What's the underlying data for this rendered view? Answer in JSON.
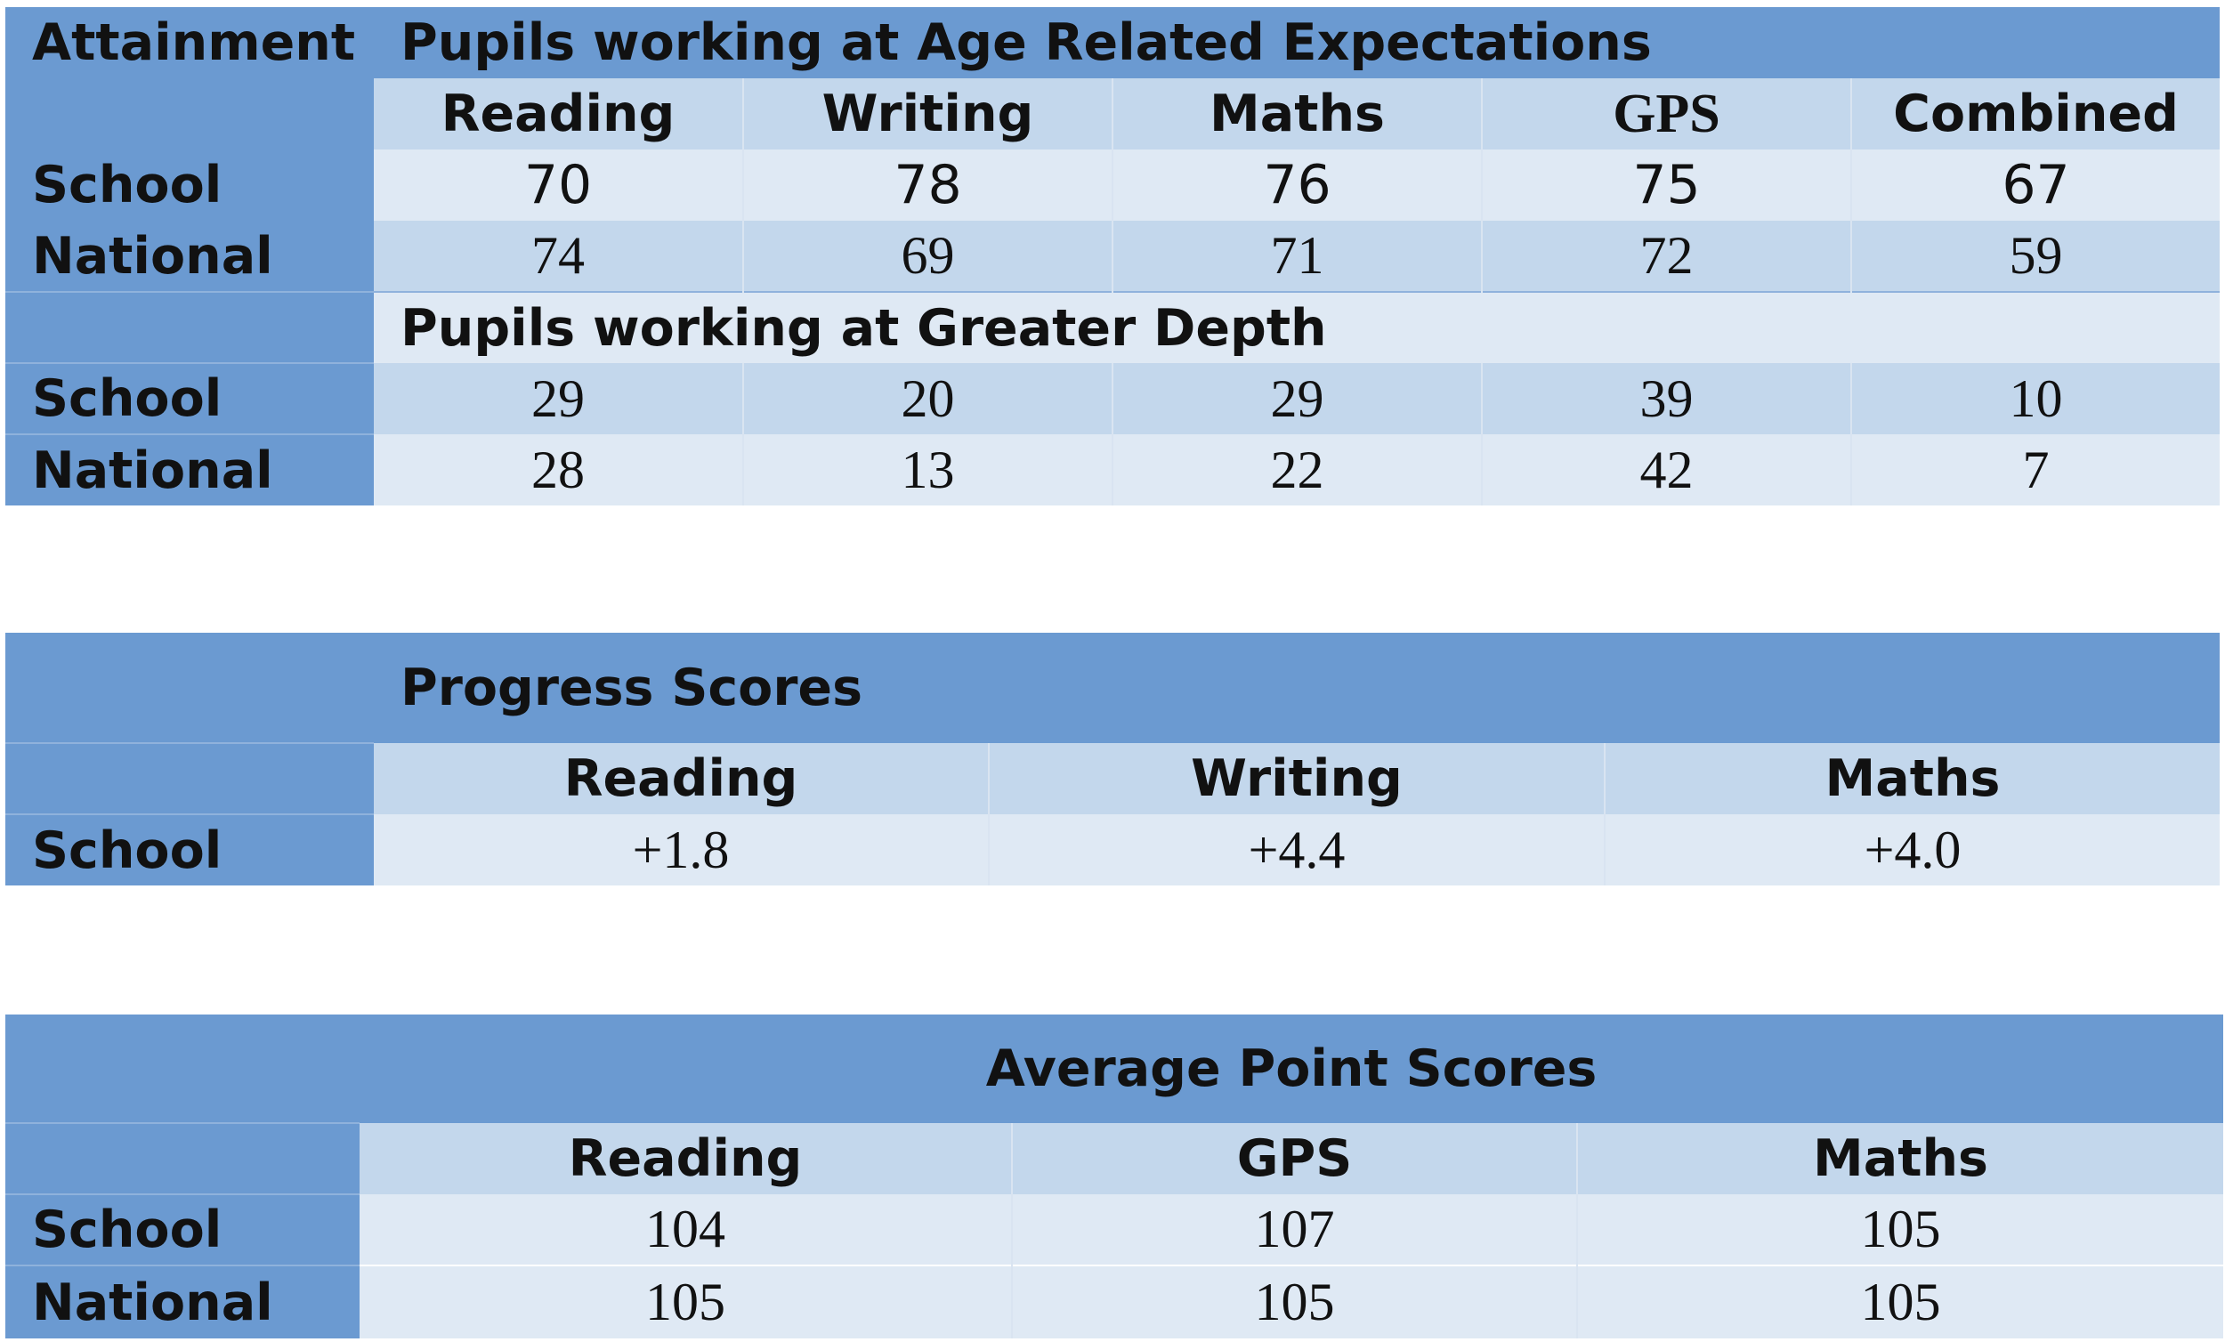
{
  "attainment": {
    "corner_label": "Attainment",
    "section_are_title": "Pupils working at Age Related Expectations",
    "columns": [
      "Reading",
      "Writing",
      "Maths",
      "GPS",
      "Combined"
    ],
    "are_rows": [
      {
        "label": "School",
        "values": [
          "70",
          "78",
          "76",
          "75",
          "67"
        ]
      },
      {
        "label": "National",
        "values": [
          "74",
          "69",
          "71",
          "72",
          "59"
        ]
      }
    ],
    "section_gd_title": "Pupils working at Greater Depth",
    "gd_rows": [
      {
        "label": "School",
        "values": [
          "29",
          "20",
          "29",
          "39",
          "10"
        ]
      },
      {
        "label": "National",
        "values": [
          "28",
          "13",
          "22",
          "42",
          "7"
        ]
      }
    ]
  },
  "progress": {
    "title": "Progress Scores",
    "columns": [
      "Reading",
      "Writing",
      "Maths"
    ],
    "rows": [
      {
        "label": "School",
        "values": [
          "+1.8",
          "+4.4",
          "+4.0"
        ]
      }
    ]
  },
  "average_points": {
    "title": "Average Point Scores",
    "columns": [
      "Reading",
      "GPS",
      "Maths"
    ],
    "rows": [
      {
        "label": "School",
        "values": [
          "104",
          "107",
          "105"
        ]
      },
      {
        "label": "National",
        "values": [
          "105",
          "105",
          "105"
        ]
      }
    ]
  },
  "colors": {
    "header_dark": "#6b9ad1",
    "band_mid": "#c3d7ec",
    "band_light": "#dfe9f4"
  }
}
